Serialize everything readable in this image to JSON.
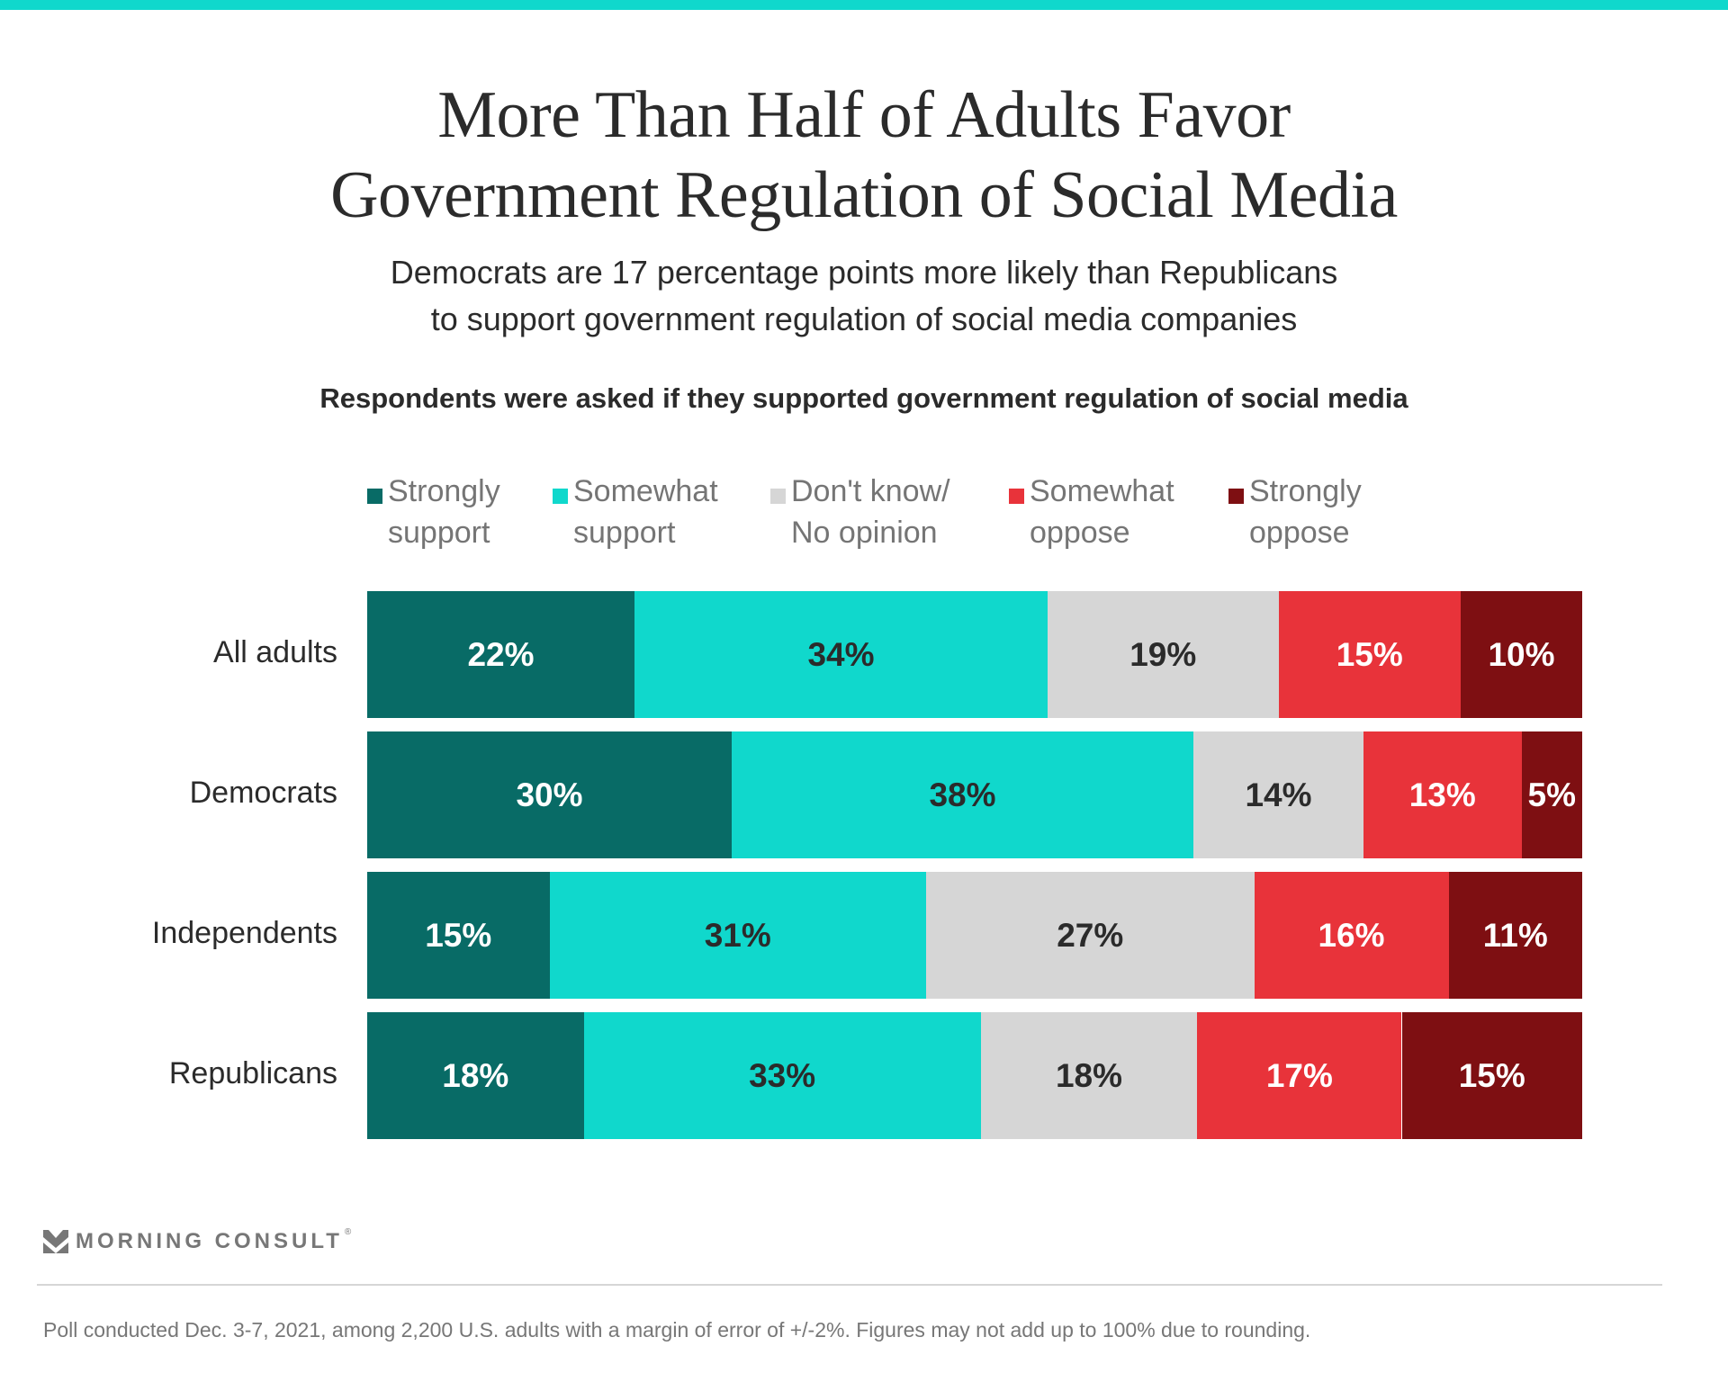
{
  "header": {
    "accent_color": "#10d8cc",
    "title_lines": [
      "More Than Half of Adults Favor",
      "Government Regulation of Social Media"
    ],
    "subtitle_lines": [
      "Democrats are 17 percentage points more likely than Republicans",
      "to support government regulation of social media companies"
    ],
    "question": "Respondents were asked if they supported government regulation of social media"
  },
  "legend": [
    {
      "lines": [
        "Strongly",
        "support"
      ],
      "color": "#086b66"
    },
    {
      "lines": [
        "Somewhat",
        "support"
      ],
      "color": "#10d8cc"
    },
    {
      "lines": [
        "Don't know/",
        "No opinion"
      ],
      "color": "#d6d6d6"
    },
    {
      "lines": [
        "Somewhat",
        "oppose"
      ],
      "color": "#e8333a"
    },
    {
      "lines": [
        "Strongly",
        "oppose"
      ],
      "color": "#7e0f12"
    }
  ],
  "chart_data": {
    "type": "bar",
    "orientation": "horizontal-stacked-100",
    "title": "More Than Half of Adults Favor Government Regulation of Social Media",
    "subtitle": "Democrats are 17 percentage points more likely than Republicans to support government regulation of social media companies",
    "xlabel": "",
    "ylabel": "",
    "categories": [
      "All adults",
      "Democrats",
      "Independents",
      "Republicans"
    ],
    "series": [
      {
        "name": "Strongly support",
        "color": "#086b66",
        "label_color": "#ffffff",
        "values": [
          22,
          30,
          15,
          18
        ]
      },
      {
        "name": "Somewhat support",
        "color": "#10d8cc",
        "label_color": "#2b2b2b",
        "values": [
          34,
          38,
          31,
          33
        ]
      },
      {
        "name": "Don't know/No opinion",
        "color": "#d6d6d6",
        "label_color": "#2b2b2b",
        "values": [
          19,
          14,
          27,
          18
        ]
      },
      {
        "name": "Somewhat oppose",
        "color": "#e8333a",
        "label_color": "#ffffff",
        "values": [
          15,
          13,
          16,
          17
        ]
      },
      {
        "name": "Strongly oppose",
        "color": "#7e0f12",
        "label_color": "#ffffff",
        "values": [
          10,
          5,
          11,
          15
        ]
      }
    ],
    "value_suffix": "%",
    "legend_position": "top",
    "grid": false
  },
  "footer": {
    "brand": "MORNING CONSULT",
    "brand_mark": "®",
    "note": "Poll conducted Dec. 3-7, 2021, among 2,200 U.S. adults with a margin of error of +/-2%. Figures may not add up to 100% due to rounding."
  }
}
